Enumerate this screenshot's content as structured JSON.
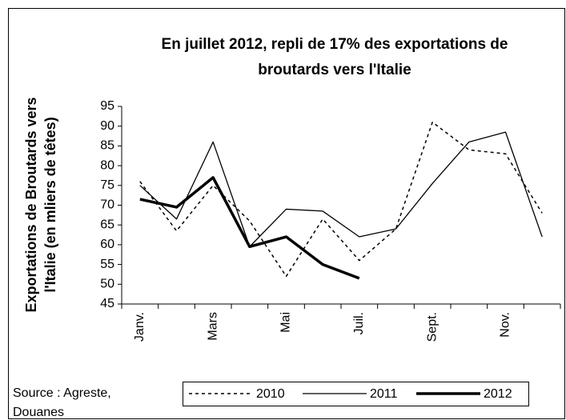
{
  "chart_data": {
    "type": "line",
    "title": [
      "En juillet 2012, repli de 17% des exportations de",
      "broutards vers l'Italie"
    ],
    "y_label": [
      "Exportations de Broutards vers",
      "l'Italie (en mliers de têtes)"
    ],
    "source": [
      "Source : Agreste,",
      "Douanes"
    ],
    "categories": [
      "Janv.",
      null,
      "Mars",
      null,
      "Mai",
      null,
      "Juil.",
      null,
      "Sept.",
      null,
      "Nov.",
      null
    ],
    "series": [
      {
        "name": "2010",
        "color": "#000000",
        "style": "dashed",
        "values": [
          76,
          63.5,
          75,
          66,
          52,
          66.5,
          56,
          64,
          91,
          84,
          83,
          68
        ]
      },
      {
        "name": "2011",
        "color": "#000000",
        "style": "solid",
        "values": [
          75,
          66.5,
          86,
          59.5,
          69,
          68.5,
          62,
          64,
          75.5,
          86,
          88.5,
          62
        ]
      },
      {
        "name": "2012",
        "color": "#000000",
        "style": "bold",
        "values": [
          71.5,
          69.5,
          77,
          59.5,
          62,
          55,
          51.5,
          null,
          null,
          null,
          null,
          null
        ]
      }
    ],
    "ylim": [
      45,
      95
    ],
    "yticks": [
      45,
      50,
      55,
      60,
      65,
      70,
      75,
      80,
      85,
      90,
      95
    ],
    "grid": false,
    "legend": "bottom"
  }
}
